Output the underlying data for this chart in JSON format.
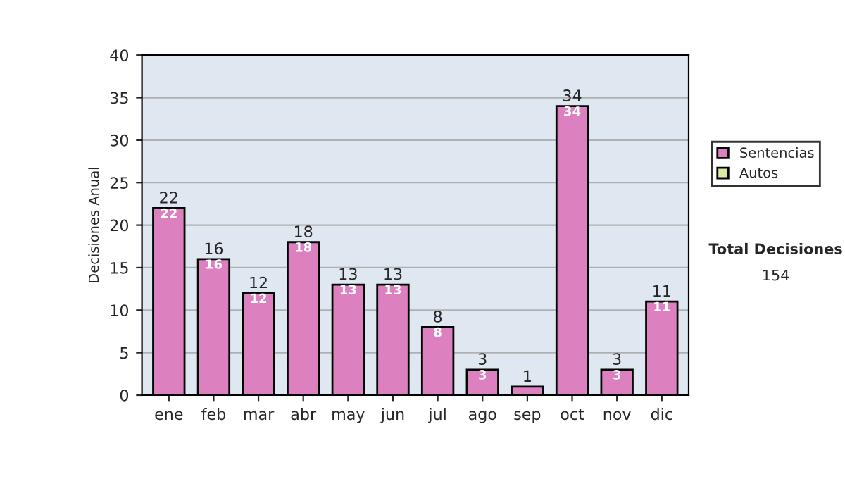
{
  "chart_data": {
    "type": "bar",
    "ylabel": "Decisiones Anual",
    "categories": [
      "ene",
      "feb",
      "mar",
      "abr",
      "may",
      "jun",
      "jul",
      "ago",
      "sep",
      "oct",
      "nov",
      "dic"
    ],
    "series": [
      {
        "name": "Sentencias",
        "color": "#dd80c0",
        "values": [
          22,
          16,
          12,
          18,
          13,
          13,
          8,
          3,
          1,
          34,
          3,
          11
        ],
        "value_labels": [
          "22",
          "16",
          "12",
          "18",
          "13",
          "13",
          "8",
          "3",
          null,
          "34",
          "3",
          "11"
        ]
      },
      {
        "name": "Autos",
        "color": "#d8eba0",
        "values": [
          0,
          0,
          0,
          0,
          0,
          0,
          0,
          0,
          0,
          0,
          0,
          0
        ]
      }
    ],
    "stacked": true,
    "totals": [
      "22",
      "16",
      "12",
      "18",
      "13",
      "13",
      "8",
      "3",
      "1",
      "34",
      "3",
      "11"
    ],
    "ylim": [
      0,
      40
    ],
    "yticks": [
      0,
      5,
      10,
      15,
      20,
      25,
      30,
      35,
      40
    ],
    "grid": "y",
    "legend": "right",
    "annotations": [
      "Total Decisiones",
      "154"
    ]
  }
}
